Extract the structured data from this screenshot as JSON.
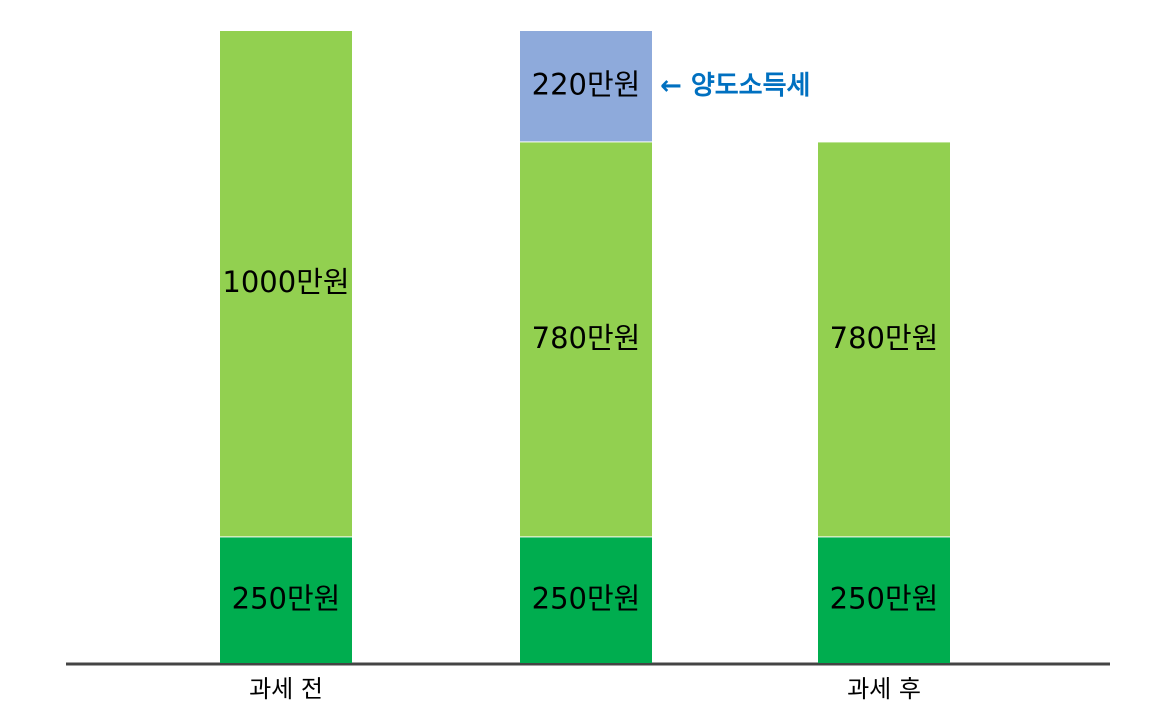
{
  "chart_data": {
    "type": "stacked-bar",
    "categories": [
      "과세 전",
      null,
      "과세 후"
    ],
    "series": [
      {
        "color": "#00ad4f",
        "values": [
          250,
          250,
          250
        ],
        "value_labels": [
          "250만원",
          "250만원",
          "250만원"
        ]
      },
      {
        "color": "#92d050",
        "values": [
          1000,
          780,
          780
        ],
        "value_labels": [
          "1000만원",
          "780만원",
          "780만원"
        ]
      },
      {
        "color": "#8eaadb",
        "values": [
          null,
          220,
          null
        ],
        "value_labels": [
          null,
          "220만원",
          null
        ]
      }
    ],
    "annotation": "← 양도소득세",
    "annotation_color": "#0070c0"
  }
}
